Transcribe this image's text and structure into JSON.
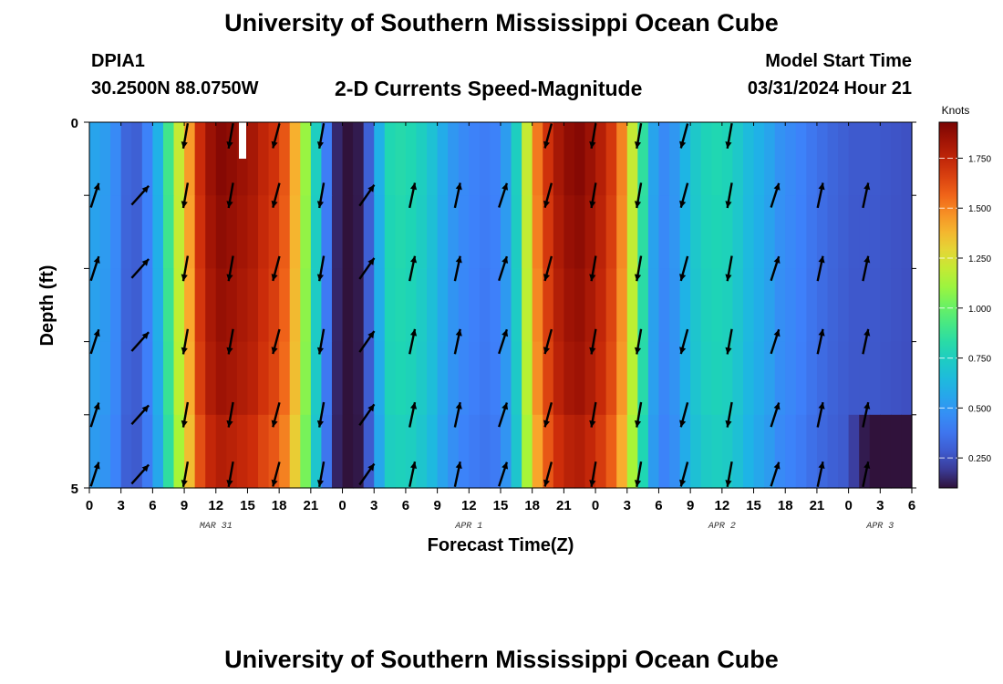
{
  "header": {
    "title": "University of Southern Mississippi Ocean Cube",
    "station": "DPIA1",
    "coords": "30.2500N  88.0750W",
    "subtitle": "2-D Currents Speed-Magnitude",
    "model_start_label": "Model Start Time",
    "model_start_date": "03/31/2024 Hour 21"
  },
  "footer": {
    "title": "University of Southern Mississippi Ocean Cube"
  },
  "chart_data": {
    "type": "heatmap",
    "title": "2-D Currents Speed-Magnitude",
    "xlabel": "Forecast Time(Z)",
    "ylabel": "Depth (ft)",
    "colorbar_label": "Knots",
    "colorbar_ticks": [
      "0.250",
      "0.500",
      "0.750",
      "1.000",
      "1.250",
      "1.500",
      "1.750"
    ],
    "colorbar_range": [
      0.1,
      1.93
    ],
    "x_ticks": [
      "0",
      "3",
      "6",
      "9",
      "12",
      "15",
      "18",
      "21",
      "0",
      "3",
      "6",
      "9",
      "12",
      "15",
      "18",
      "21",
      "0",
      "3",
      "6",
      "9",
      "12",
      "15",
      "18",
      "21",
      "0",
      "3",
      "6"
    ],
    "date_labels": [
      {
        "label": "MAR 31",
        "hour": 12
      },
      {
        "label": "APR 1",
        "hour": 36
      },
      {
        "label": "APR 2",
        "hour": 60
      },
      {
        "label": "APR 3",
        "hour": 75
      }
    ],
    "y_range": [
      0,
      5
    ],
    "y_ticks": [
      "0",
      "5"
    ],
    "x_range_hours": [
      0,
      78
    ],
    "speed_profile": [
      0.55,
      0.52,
      0.45,
      0.32,
      0.3,
      0.42,
      0.6,
      0.9,
      1.2,
      1.45,
      1.72,
      1.85,
      1.9,
      1.88,
      1.85,
      1.82,
      1.75,
      1.7,
      1.6,
      1.4,
      1.1,
      0.75,
      0.4,
      0.15,
      0.1,
      0.12,
      0.3,
      0.6,
      0.8,
      0.82,
      0.8,
      0.75,
      0.68,
      0.58,
      0.5,
      0.45,
      0.42,
      0.4,
      0.42,
      0.52,
      0.75,
      1.2,
      1.52,
      1.7,
      1.82,
      1.88,
      1.9,
      1.85,
      1.78,
      1.68,
      1.5,
      1.2,
      0.85,
      0.55,
      0.45,
      0.5,
      0.62,
      0.72,
      0.78,
      0.8,
      0.78,
      0.72,
      0.65,
      0.6,
      0.55,
      0.48,
      0.45,
      0.42,
      0.38,
      0.35,
      0.32,
      0.3,
      0.28,
      0.28,
      0.28,
      0.27,
      0.26,
      0.25
    ],
    "arrow_hours": [
      0,
      4.3,
      8.6,
      12.9,
      17.2,
      21.5,
      25.8,
      30.1,
      34.4,
      38.7,
      43,
      47.3,
      51.6,
      55.9,
      60.2,
      64.5,
      68.8,
      73.1
    ],
    "arrow_dirs": [
      "N",
      "N",
      "S",
      "S",
      "S",
      "S",
      "N",
      "N",
      "N",
      "N",
      "S",
      "S",
      "S",
      "S",
      "S",
      "N",
      "N",
      "N"
    ]
  }
}
